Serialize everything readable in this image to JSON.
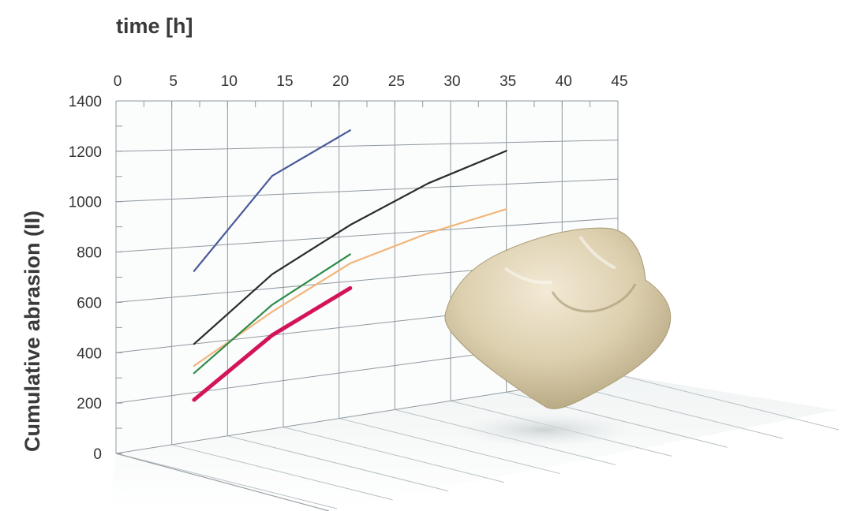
{
  "chart_data": {
    "type": "line",
    "title": "time [h]",
    "xlabel": "time [h]",
    "ylabel": "Cumulative abrasion (II)",
    "xlim": [
      0,
      45
    ],
    "ylim": [
      0,
      1400
    ],
    "x_ticks": [
      "0",
      "5",
      "10",
      "15",
      "20",
      "25",
      "30",
      "35",
      "40",
      "45"
    ],
    "y_ticks": [
      "0",
      "200",
      "400",
      "600",
      "800",
      "1000",
      "1200",
      "1400"
    ],
    "grid": true,
    "series": [
      {
        "color": "#4a5a9a",
        "x": [
          7,
          14,
          21
        ],
        "y": [
          700,
          1080,
          1270
        ]
      },
      {
        "color": "#2b2b2b",
        "x": [
          7,
          14,
          21,
          28,
          35
        ],
        "y": [
          400,
          660,
          850,
          1020,
          1160
        ]
      },
      {
        "color": "#f2b57a",
        "x": [
          7,
          14,
          21,
          28,
          35
        ],
        "y": [
          310,
          500,
          680,
          790,
          880
        ]
      },
      {
        "color": "#2e8b4a",
        "x": [
          7,
          14,
          21
        ],
        "y": [
          280,
          530,
          720
        ]
      },
      {
        "color": "#d4145a",
        "x": [
          7,
          14,
          21
        ],
        "y": [
          170,
          400,
          570
        ]
      }
    ]
  },
  "tooth_image": {
    "name": "tooth-illustration"
  }
}
